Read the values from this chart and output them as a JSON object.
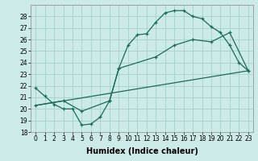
{
  "title": "",
  "xlabel": "Humidex (Indice chaleur)",
  "background_color": "#cceae7",
  "grid_color": "#aad4d0",
  "line_color": "#1a6b5a",
  "xlim": [
    -0.5,
    23.5
  ],
  "ylim": [
    18,
    29
  ],
  "yticks": [
    18,
    19,
    20,
    21,
    22,
    23,
    24,
    25,
    26,
    27,
    28
  ],
  "xticks": [
    0,
    1,
    2,
    3,
    4,
    5,
    6,
    7,
    8,
    9,
    10,
    11,
    12,
    13,
    14,
    15,
    16,
    17,
    18,
    19,
    20,
    21,
    22,
    23
  ],
  "line1_x": [
    0,
    1,
    2,
    3,
    4,
    5,
    6,
    7,
    8,
    9,
    10,
    11,
    12,
    13,
    14,
    15,
    16,
    17,
    18,
    19,
    20,
    21,
    22,
    23
  ],
  "line1_y": [
    21.8,
    21.1,
    20.4,
    20.0,
    20.0,
    18.6,
    18.7,
    19.3,
    20.7,
    23.5,
    25.5,
    26.4,
    26.5,
    27.5,
    28.3,
    28.5,
    28.5,
    28.0,
    27.8,
    27.1,
    26.6,
    25.5,
    24.0,
    23.3
  ],
  "line2_x": [
    0,
    3,
    5,
    8,
    9,
    13,
    15,
    17,
    19,
    21,
    23
  ],
  "line2_y": [
    20.3,
    20.7,
    19.8,
    20.7,
    23.5,
    24.5,
    25.5,
    26.0,
    25.8,
    26.6,
    23.3
  ],
  "line3_x": [
    0,
    23
  ],
  "line3_y": [
    20.3,
    23.3
  ],
  "xlabel_fontsize": 7,
  "tick_fontsize": 5.5
}
